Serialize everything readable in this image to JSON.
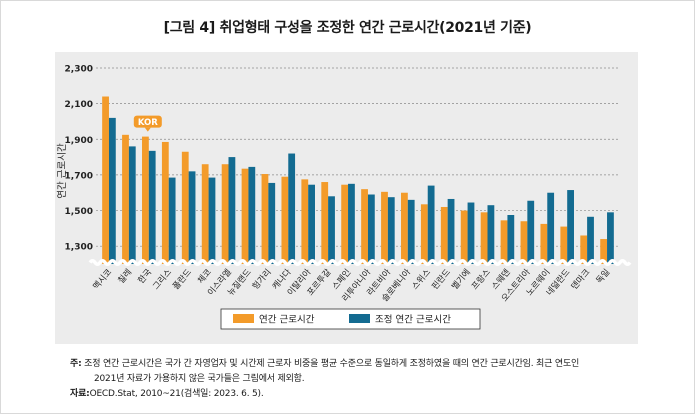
{
  "title": "[그림 4] 취업형태 구성을 조정한 연간 근로시간(2021년 기준)",
  "notes": {
    "note_label": "주:",
    "note_line1": "조정 연간 근로시간은 국가 간 자영업자 및 시간제 근로자 비중을 평균 수준으로 동일하게 조정하였을 때의 연간 근로시간임. 최근 연도인",
    "note_line2": "2021년 자료가 가용하지 않은 국가들은 그림에서 제외함.",
    "source_label": "자료:",
    "source_text": "OECD.Stat, 2010~21(검색일: 2023. 6. 5)."
  },
  "chart_data": {
    "type": "bar",
    "ylabel": "연간 근로시간",
    "xlabel": "",
    "ylim": [
      1200,
      2300
    ],
    "yticks": [
      1300,
      1500,
      1700,
      1900,
      2100,
      2300
    ],
    "ytick_labels": [
      "1,300",
      "1,500",
      "1,700",
      "1,900",
      "2,100",
      "2,300"
    ],
    "axis_break": true,
    "grid": "horizontal dashed",
    "legend_position": "bottom",
    "callout": {
      "label": "KOR",
      "category": "한국"
    },
    "categories": [
      "멕시코",
      "칠레",
      "한국",
      "그리스",
      "폴란드",
      "체코",
      "이스라엘",
      "뉴질랜드",
      "헝가리",
      "캐나다",
      "이탈리아",
      "포르투갈",
      "스페인",
      "리투아니아",
      "라트비아",
      "슬로베니아",
      "스위스",
      "핀란드",
      "벨기에",
      "프랑스",
      "스웨덴",
      "오스트리아",
      "노르웨이",
      "네덜란드",
      "덴마크",
      "독일"
    ],
    "series": [
      {
        "name": "연간 근로시간",
        "color": "#f39b2a",
        "values": [
          2140,
          1925,
          1915,
          1885,
          1830,
          1760,
          1760,
          1735,
          1705,
          1690,
          1675,
          1660,
          1645,
          1620,
          1605,
          1600,
          1535,
          1520,
          1500,
          1490,
          1445,
          1440,
          1425,
          1410,
          1360,
          1340
        ]
      },
      {
        "name": "조정 연간 근로시간",
        "color": "#136b91",
        "values": [
          2020,
          1860,
          1835,
          1685,
          1720,
          1685,
          1800,
          1745,
          1655,
          1820,
          1645,
          1580,
          1650,
          1590,
          1575,
          1560,
          1640,
          1565,
          1545,
          1530,
          1475,
          1555,
          1600,
          1615,
          1465,
          1490
        ]
      }
    ]
  }
}
